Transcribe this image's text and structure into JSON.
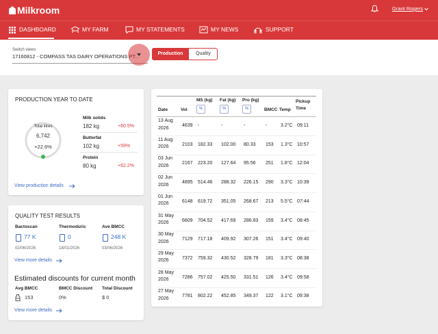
{
  "header": {
    "logo": "Milkroom",
    "user": "Grant Rogers"
  },
  "nav": [
    "DASHBOARD",
    "MY FARM",
    "MY STATEMENTS",
    "MY NEWS",
    "SUPPORT"
  ],
  "switch_views": {
    "label": "Switch views",
    "selected": "17160812 - COMPASS TAS DAIRY OPERATIONS PT...",
    "toggle": [
      "Production",
      "Quality"
    ]
  },
  "production": {
    "title": "PRODUCTION YEAR TO DATE",
    "total_label": "Total litres",
    "total": "6,742",
    "total_change": "+22.6%",
    "metrics": [
      {
        "label": "Milk solids",
        "value": "182 kg",
        "change": "+60.5%"
      },
      {
        "label": "Butterfat",
        "value": "102 kg",
        "change": "+59%"
      },
      {
        "label": "Protein",
        "value": "80 kg",
        "change": "+62.2%"
      }
    ],
    "link": "View production details"
  },
  "quality": {
    "title": "QUALITY TEST RESULTS",
    "tests": [
      {
        "label": "Bactoscan",
        "value": "77 K",
        "date": "02/06/2026"
      },
      {
        "label": "Thermoduric",
        "value": "0",
        "date": "18/01/2026"
      },
      {
        "label": "Ave BMCC",
        "value": "248 K",
        "date": "03/06/2026"
      }
    ],
    "link": "View more details",
    "discounts": {
      "title": "Estimated discounts for current month",
      "items": [
        {
          "label": "Avg BMCC",
          "value": "153"
        },
        {
          "label": "BMCC Discount",
          "value": "0%"
        },
        {
          "label": "Total Discount",
          "value": "$ 0"
        }
      ],
      "link": "View more details"
    }
  },
  "table": {
    "columns": [
      "Date",
      "Vol",
      "MS (kg)",
      "Fat (kg)",
      "Pro (kg)",
      "BMCC",
      "Temp",
      "Pickup Time"
    ],
    "percent_button": "%",
    "rows": [
      [
        "13 Aug 2026",
        "4639",
        "-",
        "-",
        "-",
        "-",
        "3.2°C",
        "09:11"
      ],
      [
        "11 Aug 2026",
        "2103",
        "182.33",
        "102.00",
        "80.33",
        "153",
        "1.3°C",
        "10:57"
      ],
      [
        "03 Jun 2026",
        "2167",
        "223.20",
        "127.64",
        "95.56",
        "251",
        "1.8°C",
        "12:04"
      ],
      [
        "02 Jun 2026",
        "4895",
        "514.46",
        "288.32",
        "226.15",
        "290",
        "3.3°C",
        "10:39"
      ],
      [
        "01 Jun 2026",
        "6148",
        "619.72",
        "351.05",
        "268.67",
        "213",
        "5.5°C",
        "07:44"
      ],
      [
        "31 May 2026",
        "6609",
        "704.52",
        "417.69",
        "286.83",
        "159",
        "3.4°C",
        "08:45"
      ],
      [
        "30 May 2026",
        "7129",
        "717.18",
        "409.92",
        "307.26",
        "151",
        "3.4°C",
        "09:40"
      ],
      [
        "29 May 2026",
        "7372",
        "759.32",
        "430.52",
        "328.79",
        "181",
        "3.3°C",
        "08:38"
      ],
      [
        "28 May 2026",
        "7286",
        "757.02",
        "425.50",
        "331.51",
        "126",
        "3.4°C",
        "09:58"
      ],
      [
        "27 May 2026",
        "7781",
        "802.22",
        "452.85",
        "349.37",
        "122",
        "3.1°C",
        "09:38"
      ]
    ]
  }
}
